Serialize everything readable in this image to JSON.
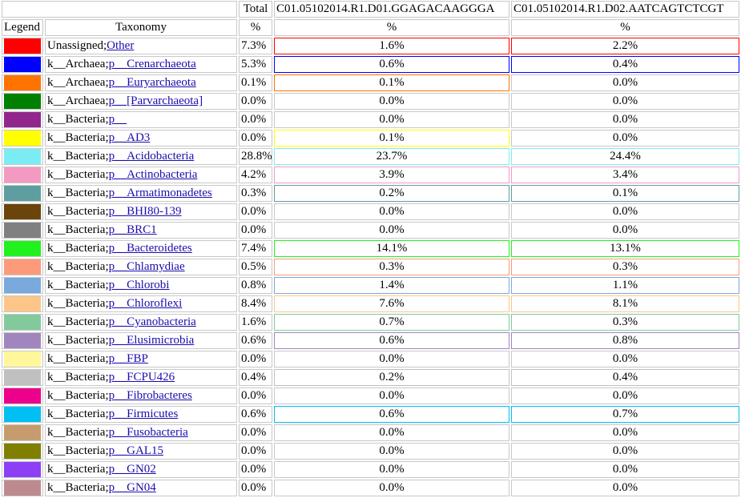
{
  "header": {
    "total_label": "Total",
    "sample1_label": "C01.05102014.R1.D01.GGAGACAAGGGA",
    "sample2_label": "C01.05102014.R1.D02.AATCAGTCTCGT",
    "legend_label": "Legend",
    "taxonomy_label": "Taxonomy",
    "percent_symbol": "%"
  },
  "rows": [
    {
      "color": "#ff0000",
      "prefix": "Unassigned;",
      "link": "Other",
      "total": "7.3%",
      "s1": "1.6%",
      "s2": "2.2%"
    },
    {
      "color": "#0000ff",
      "prefix": "k__Archaea;",
      "link": "p__Crenarchaeota",
      "total": "5.3%",
      "s1": "0.6%",
      "s2": "0.4%"
    },
    {
      "color": "#ff7300",
      "prefix": "k__Archaea;",
      "link": "p__Euryarchaeota",
      "total": "0.1%",
      "s1": "0.1%",
      "s2": "0.0%"
    },
    {
      "color": "#008000",
      "prefix": "k__Archaea;",
      "link": "p__[Parvarchaeota]",
      "total": "0.0%",
      "s1": "0.0%",
      "s2": "0.0%"
    },
    {
      "color": "#91278d",
      "prefix": "k__Bacteria;",
      "link": "p__",
      "total": "0.0%",
      "s1": "0.0%",
      "s2": "0.0%"
    },
    {
      "color": "#ffff00",
      "prefix": "k__Bacteria;",
      "link": "p__AD3",
      "total": "0.0%",
      "s1": "0.1%",
      "s2": "0.0%"
    },
    {
      "color": "#7cecf4",
      "prefix": "k__Bacteria;",
      "link": "p__Acidobacteria",
      "total": "28.8%",
      "s1": "23.7%",
      "s2": "24.4%"
    },
    {
      "color": "#f49ac2",
      "prefix": "k__Bacteria;",
      "link": "p__Actinobacteria",
      "total": "4.2%",
      "s1": "3.9%",
      "s2": "3.4%"
    },
    {
      "color": "#5f9ea0",
      "prefix": "k__Bacteria;",
      "link": "p__Armatimonadetes",
      "total": "0.3%",
      "s1": "0.2%",
      "s2": "0.1%"
    },
    {
      "color": "#6b440b",
      "prefix": "k__Bacteria;",
      "link": "p__BHI80-139",
      "total": "0.0%",
      "s1": "0.0%",
      "s2": "0.0%"
    },
    {
      "color": "#808080",
      "prefix": "k__Bacteria;",
      "link": "p__BRC1",
      "total": "0.0%",
      "s1": "0.0%",
      "s2": "0.0%"
    },
    {
      "color": "#21f11e",
      "prefix": "k__Bacteria;",
      "link": "p__Bacteroidetes",
      "total": "7.4%",
      "s1": "14.1%",
      "s2": "13.1%"
    },
    {
      "color": "#fd9a79",
      "prefix": "k__Bacteria;",
      "link": "p__Chlamydiae",
      "total": "0.5%",
      "s1": "0.3%",
      "s2": "0.3%"
    },
    {
      "color": "#7aa9dd",
      "prefix": "k__Bacteria;",
      "link": "p__Chlorobi",
      "total": "0.8%",
      "s1": "1.4%",
      "s2": "1.1%"
    },
    {
      "color": "#fdc689",
      "prefix": "k__Bacteria;",
      "link": "p__Chloroflexi",
      "total": "8.4%",
      "s1": "7.6%",
      "s2": "8.1%"
    },
    {
      "color": "#82ca9c",
      "prefix": "k__Bacteria;",
      "link": "p__Cyanobacteria",
      "total": "1.6%",
      "s1": "0.7%",
      "s2": "0.3%"
    },
    {
      "color": "#a186be",
      "prefix": "k__Bacteria;",
      "link": "p__Elusimicrobia",
      "total": "0.6%",
      "s1": "0.6%",
      "s2": "0.8%"
    },
    {
      "color": "#fff79a",
      "prefix": "k__Bacteria;",
      "link": "p__FBP",
      "total": "0.0%",
      "s1": "0.0%",
      "s2": "0.0%"
    },
    {
      "color": "#c0c0c0",
      "prefix": "k__Bacteria;",
      "link": "p__FCPU426",
      "total": "0.4%",
      "s1": "0.2%",
      "s2": "0.4%"
    },
    {
      "color": "#ec008c",
      "prefix": "k__Bacteria;",
      "link": "p__Fibrobacteres",
      "total": "0.0%",
      "s1": "0.0%",
      "s2": "0.0%"
    },
    {
      "color": "#00bff3",
      "prefix": "k__Bacteria;",
      "link": "p__Firmicutes",
      "total": "0.6%",
      "s1": "0.6%",
      "s2": "0.7%"
    },
    {
      "color": "#c69c6e",
      "prefix": "k__Bacteria;",
      "link": "p__Fusobacteria",
      "total": "0.0%",
      "s1": "0.0%",
      "s2": "0.0%"
    },
    {
      "color": "#7f7f00",
      "prefix": "k__Bacteria;",
      "link": "p__GAL15",
      "total": "0.0%",
      "s1": "0.0%",
      "s2": "0.0%"
    },
    {
      "color": "#8c3ff5",
      "prefix": "k__Bacteria;",
      "link": "p__GN02",
      "total": "0.0%",
      "s1": "0.0%",
      "s2": "0.0%"
    },
    {
      "color": "#bc8a8f",
      "prefix": "k__Bacteria;",
      "link": "p__GN04",
      "total": "0.0%",
      "s1": "0.0%",
      "s2": "0.0%"
    }
  ]
}
